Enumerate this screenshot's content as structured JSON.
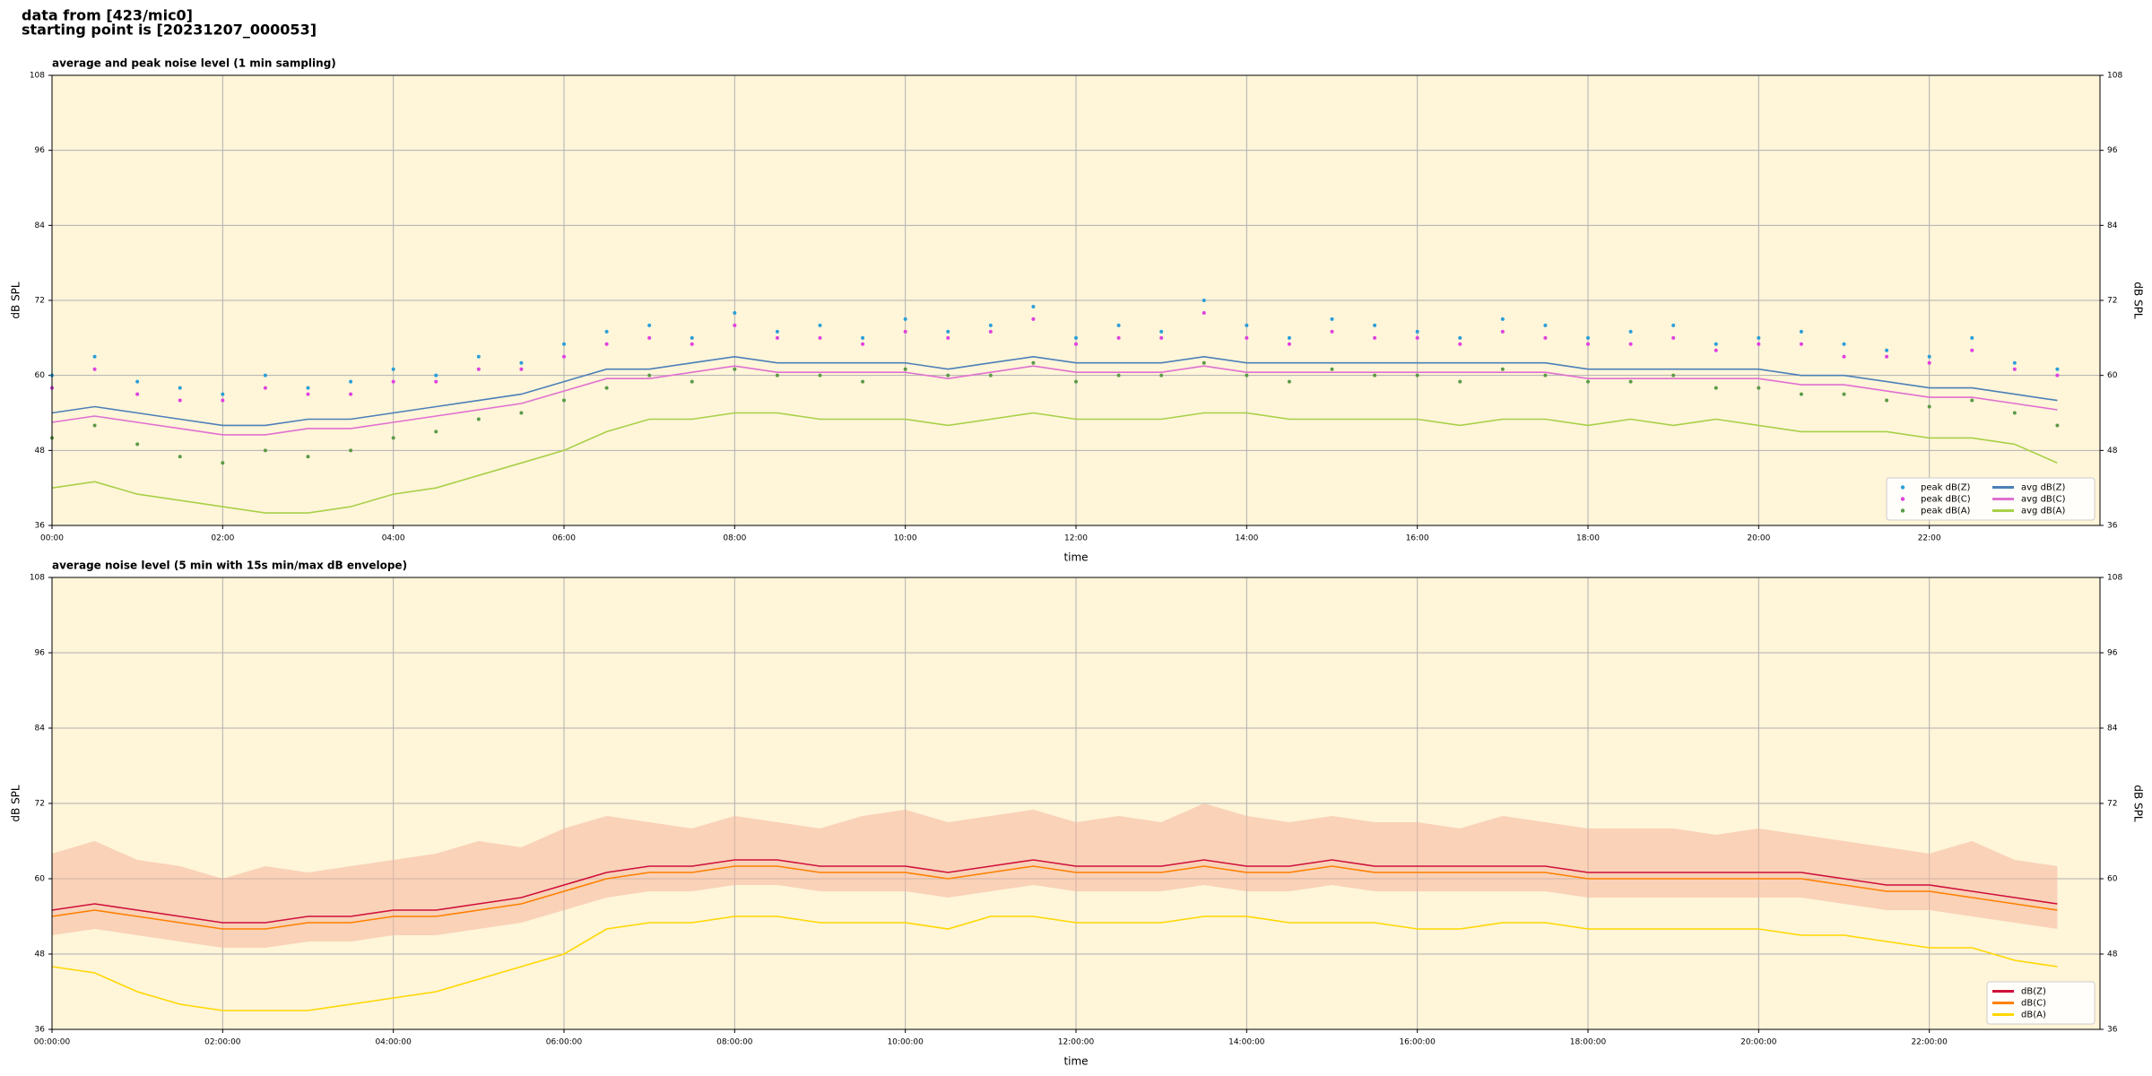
{
  "header": [
    "data from [423/mic0]",
    "starting point is [20231207_000053]"
  ],
  "chart_data": [
    {
      "type": "line",
      "title": "average and peak noise level (1 min sampling)",
      "xlabel": "time",
      "ylabel": "dB SPL",
      "background": "#fff5d9",
      "grid": true,
      "legend": "lower right",
      "legend_columns": 2,
      "xlim": [
        0,
        24
      ],
      "xticks": [
        {
          "value": 0,
          "label": "00:00"
        },
        {
          "value": 2,
          "label": "02:00"
        },
        {
          "value": 4,
          "label": "04:00"
        },
        {
          "value": 6,
          "label": "06:00"
        },
        {
          "value": 8,
          "label": "08:00"
        },
        {
          "value": 10,
          "label": "10:00"
        },
        {
          "value": 12,
          "label": "12:00"
        },
        {
          "value": 14,
          "label": "14:00"
        },
        {
          "value": 16,
          "label": "16:00"
        },
        {
          "value": 18,
          "label": "18:00"
        },
        {
          "value": 20,
          "label": "20:00"
        },
        {
          "value": 22,
          "label": "22:00"
        }
      ],
      "ylim": [
        36,
        108
      ],
      "yticks": [
        36,
        48,
        60,
        72,
        84,
        96,
        108
      ],
      "x": [
        0,
        0.5,
        1,
        1.5,
        2,
        2.5,
        3,
        3.5,
        4,
        4.5,
        5,
        5.5,
        6,
        6.5,
        7,
        7.5,
        8,
        8.5,
        9,
        9.5,
        10,
        10.5,
        11,
        11.5,
        12,
        12.5,
        13,
        13.5,
        14,
        14.5,
        15,
        15.5,
        16,
        16.5,
        17,
        17.5,
        18,
        18.5,
        19,
        19.5,
        20,
        20.5,
        21,
        21.5,
        22,
        22.5,
        23,
        23.5
      ],
      "series": [
        {
          "name": "peak dB(Z)",
          "style": "scatter",
          "color": "#2a9fd8",
          "values": [
            60,
            63,
            59,
            58,
            57,
            60,
            58,
            59,
            61,
            60,
            63,
            62,
            65,
            67,
            68,
            66,
            70,
            67,
            68,
            66,
            69,
            67,
            68,
            71,
            66,
            68,
            67,
            72,
            68,
            66,
            69,
            68,
            67,
            66,
            69,
            68,
            66,
            67,
            68,
            65,
            66,
            67,
            65,
            64,
            63,
            66,
            62,
            61
          ]
        },
        {
          "name": "peak dB(C)",
          "style": "scatter",
          "color": "#e040e0",
          "values": [
            58,
            61,
            57,
            56,
            56,
            58,
            57,
            57,
            59,
            59,
            61,
            61,
            63,
            65,
            66,
            65,
            68,
            66,
            66,
            65,
            67,
            66,
            67,
            69,
            65,
            66,
            66,
            70,
            66,
            65,
            67,
            66,
            66,
            65,
            67,
            66,
            65,
            65,
            66,
            64,
            65,
            65,
            63,
            63,
            62,
            64,
            61,
            60
          ]
        },
        {
          "name": "peak dB(A)",
          "style": "scatter",
          "color": "#5c9a48",
          "values": [
            50,
            52,
            49,
            47,
            46,
            48,
            47,
            48,
            50,
            51,
            53,
            54,
            56,
            58,
            60,
            59,
            61,
            60,
            60,
            59,
            61,
            60,
            60,
            62,
            59,
            60,
            60,
            62,
            60,
            59,
            61,
            60,
            60,
            59,
            61,
            60,
            59,
            59,
            60,
            58,
            58,
            57,
            57,
            56,
            55,
            56,
            54,
            52
          ]
        },
        {
          "name": "avg dB(Z)",
          "style": "line",
          "color": "#4b80b8",
          "values": [
            54,
            55,
            54,
            53,
            52,
            52,
            53,
            53,
            54,
            55,
            56,
            57,
            59,
            61,
            61,
            62,
            63,
            62,
            62,
            62,
            62,
            61,
            62,
            63,
            62,
            62,
            62,
            63,
            62,
            62,
            62,
            62,
            62,
            62,
            62,
            62,
            61,
            61,
            61,
            61,
            61,
            60,
            60,
            59,
            58,
            58,
            57,
            56
          ]
        },
        {
          "name": "avg dB(C)",
          "style": "line",
          "color": "#e070d0",
          "values": [
            52.5,
            53.5,
            52.5,
            51.5,
            50.5,
            50.5,
            51.5,
            51.5,
            52.5,
            53.5,
            54.5,
            55.5,
            57.5,
            59.5,
            59.5,
            60.5,
            61.5,
            60.5,
            60.5,
            60.5,
            60.5,
            59.5,
            60.5,
            61.5,
            60.5,
            60.5,
            60.5,
            61.5,
            60.5,
            60.5,
            60.5,
            60.5,
            60.5,
            60.5,
            60.5,
            60.5,
            59.5,
            59.5,
            59.5,
            59.5,
            59.5,
            58.5,
            58.5,
            57.5,
            56.5,
            56.5,
            55.5,
            54.5
          ]
        },
        {
          "name": "avg dB(A)",
          "style": "line",
          "color": "#a8d048",
          "values": [
            42,
            43,
            41,
            40,
            39,
            38,
            38,
            39,
            41,
            42,
            44,
            46,
            48,
            51,
            53,
            53,
            54,
            54,
            53,
            53,
            53,
            52,
            53,
            54,
            53,
            53,
            53,
            54,
            54,
            53,
            53,
            53,
            53,
            52,
            53,
            53,
            52,
            53,
            52,
            53,
            52,
            51,
            51,
            51,
            50,
            50,
            49,
            46
          ]
        }
      ]
    },
    {
      "type": "line",
      "title": "average noise level (5 min with 15s min/max dB envelope)",
      "xlabel": "time",
      "ylabel": "dB SPL",
      "background": "#fff5d9",
      "grid": true,
      "legend": "lower right",
      "legend_columns": 1,
      "xlim": [
        0,
        24
      ],
      "xticks": [
        {
          "value": 0,
          "label": "00:00:00"
        },
        {
          "value": 2,
          "label": "02:00:00"
        },
        {
          "value": 4,
          "label": "04:00:00"
        },
        {
          "value": 6,
          "label": "06:00:00"
        },
        {
          "value": 8,
          "label": "08:00:00"
        },
        {
          "value": 10,
          "label": "10:00:00"
        },
        {
          "value": 12,
          "label": "12:00:00"
        },
        {
          "value": 14,
          "label": "14:00:00"
        },
        {
          "value": 16,
          "label": "16:00:00"
        },
        {
          "value": 18,
          "label": "18:00:00"
        },
        {
          "value": 20,
          "label": "20:00:00"
        },
        {
          "value": 22,
          "label": "22:00:00"
        }
      ],
      "ylim": [
        36,
        108
      ],
      "yticks": [
        36,
        48,
        60,
        72,
        84,
        96,
        108
      ],
      "x": [
        0,
        0.5,
        1,
        1.5,
        2,
        2.5,
        3,
        3.5,
        4,
        4.5,
        5,
        5.5,
        6,
        6.5,
        7,
        7.5,
        8,
        8.5,
        9,
        9.5,
        10,
        10.5,
        11,
        11.5,
        12,
        12.5,
        13,
        13.5,
        14,
        14.5,
        15,
        15.5,
        16,
        16.5,
        17,
        17.5,
        18,
        18.5,
        19,
        19.5,
        20,
        20.5,
        21,
        21.5,
        22,
        22.5,
        23,
        23.5
      ],
      "envelope": {
        "color": "#f4b49c",
        "low": [
          51,
          52,
          51,
          50,
          49,
          49,
          50,
          50,
          51,
          51,
          52,
          53,
          55,
          57,
          58,
          58,
          59,
          59,
          58,
          58,
          58,
          57,
          58,
          59,
          58,
          58,
          58,
          59,
          58,
          58,
          59,
          58,
          58,
          58,
          58,
          58,
          57,
          57,
          57,
          57,
          57,
          57,
          56,
          55,
          55,
          54,
          53,
          52
        ],
        "high": [
          64,
          66,
          63,
          62,
          60,
          62,
          61,
          62,
          63,
          64,
          66,
          65,
          68,
          70,
          69,
          68,
          70,
          69,
          68,
          70,
          71,
          69,
          70,
          71,
          69,
          70,
          69,
          72,
          70,
          69,
          70,
          69,
          69,
          68,
          70,
          69,
          68,
          68,
          68,
          67,
          68,
          67,
          66,
          65,
          64,
          66,
          63,
          62
        ]
      },
      "series": [
        {
          "name": "dB(Z)",
          "style": "line",
          "color": "#d0103a",
          "values": [
            55,
            56,
            55,
            54,
            53,
            53,
            54,
            54,
            55,
            55,
            56,
            57,
            59,
            61,
            62,
            62,
            63,
            63,
            62,
            62,
            62,
            61,
            62,
            63,
            62,
            62,
            62,
            63,
            62,
            62,
            63,
            62,
            62,
            62,
            62,
            62,
            61,
            61,
            61,
            61,
            61,
            61,
            60,
            59,
            59,
            58,
            57,
            56
          ]
        },
        {
          "name": "dB(C)",
          "style": "line",
          "color": "#ff8000",
          "values": [
            54,
            55,
            54,
            53,
            52,
            52,
            53,
            53,
            54,
            54,
            55,
            56,
            58,
            60,
            61,
            61,
            62,
            62,
            61,
            61,
            61,
            60,
            61,
            62,
            61,
            61,
            61,
            62,
            61,
            61,
            62,
            61,
            61,
            61,
            61,
            61,
            60,
            60,
            60,
            60,
            60,
            60,
            59,
            58,
            58,
            57,
            56,
            55
          ]
        },
        {
          "name": "dB(A)",
          "style": "line",
          "color": "#ffd700",
          "values": [
            46,
            45,
            42,
            40,
            39,
            39,
            39,
            40,
            41,
            42,
            44,
            46,
            48,
            52,
            53,
            53,
            54,
            54,
            53,
            53,
            53,
            52,
            54,
            54,
            53,
            53,
            53,
            54,
            54,
            53,
            53,
            53,
            52,
            52,
            53,
            53,
            52,
            52,
            52,
            52,
            52,
            51,
            51,
            50,
            49,
            49,
            47,
            46
          ]
        }
      ]
    }
  ]
}
